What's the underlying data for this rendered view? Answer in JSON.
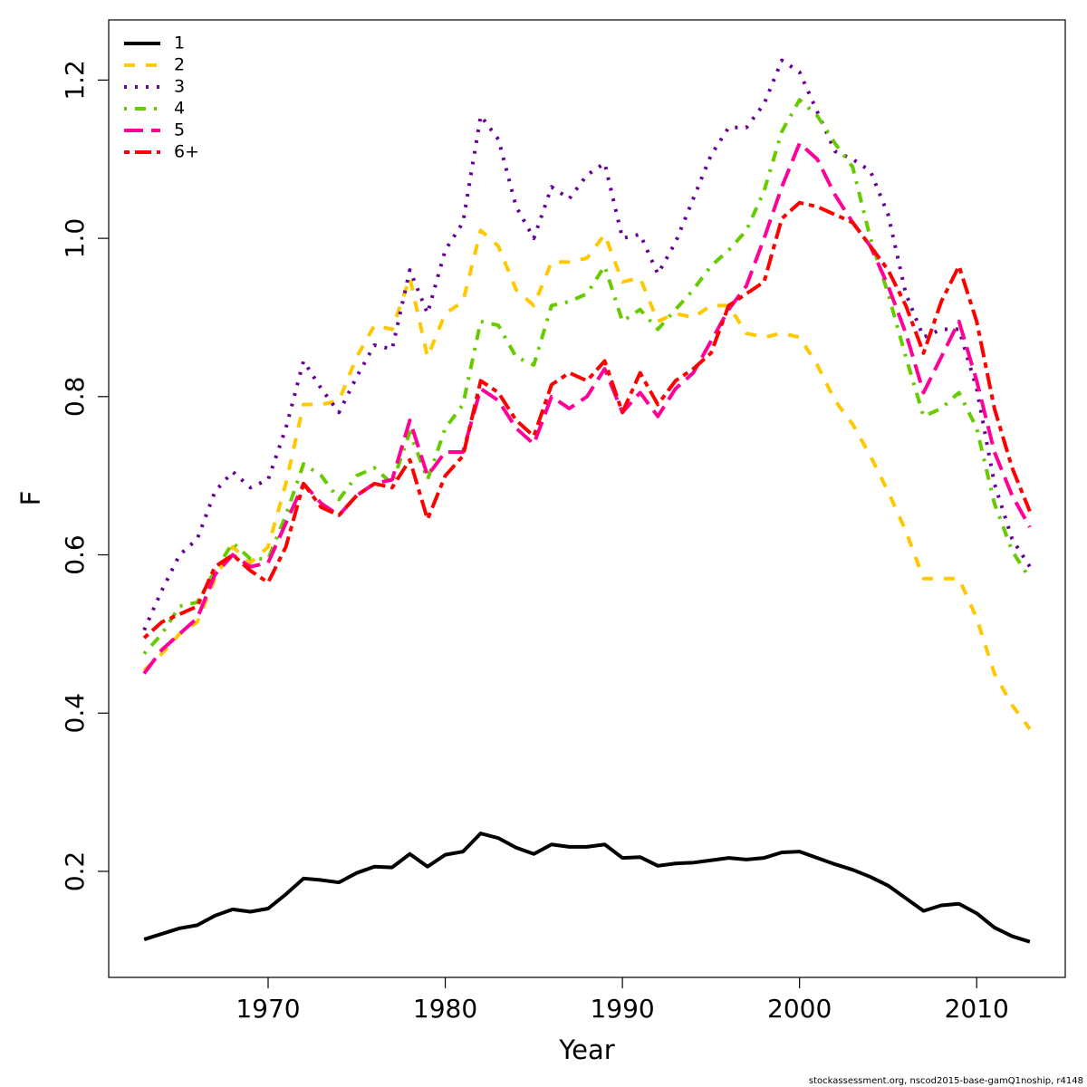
{
  "chart_data": {
    "type": "line",
    "xlabel": "Year",
    "ylabel": "F",
    "caption": "stockassessment.org, nscod2015-base-gamQ1noship, r4148",
    "legend_position": "topleft",
    "xlim": [
      1961,
      2015
    ],
    "ylim": [
      0.066,
      1.276
    ],
    "xticks": [
      1970,
      1980,
      1990,
      2000,
      2010
    ],
    "yticks": [
      0.2,
      0.4,
      0.6,
      0.8,
      {
        "value": 1,
        "label": "1.0"
      },
      1.2
    ],
    "x": [
      1963,
      1964,
      1965,
      1966,
      1967,
      1968,
      1969,
      1970,
      1971,
      1972,
      1973,
      1974,
      1975,
      1976,
      1977,
      1978,
      1979,
      1980,
      1981,
      1982,
      1983,
      1984,
      1985,
      1986,
      1987,
      1988,
      1989,
      1990,
      1991,
      1992,
      1993,
      1994,
      1995,
      1996,
      1997,
      1998,
      1999,
      2000,
      2001,
      2002,
      2003,
      2004,
      2005,
      2006,
      2007,
      2008,
      2009,
      2010,
      2011,
      2012,
      2013
    ],
    "series": [
      {
        "name": "1",
        "color": "#000000",
        "linestyle": "solid",
        "values": [
          0.114,
          0.121,
          0.128,
          0.132,
          0.144,
          0.152,
          0.149,
          0.153,
          0.171,
          0.191,
          0.189,
          0.186,
          0.198,
          0.206,
          0.205,
          0.222,
          0.206,
          0.221,
          0.225,
          0.248,
          0.242,
          0.23,
          0.222,
          0.234,
          0.231,
          0.231,
          0.234,
          0.217,
          0.218,
          0.207,
          0.21,
          0.211,
          0.214,
          0.217,
          0.215,
          0.217,
          0.224,
          0.225,
          0.217,
          0.209,
          0.202,
          0.193,
          0.182,
          0.166,
          0.15,
          0.157,
          0.159,
          0.147,
          0.129,
          0.118,
          0.111
        ]
      },
      {
        "name": "2",
        "color": "#ffc800",
        "linestyle": "dashed",
        "values": [
          0.454,
          0.475,
          0.5,
          0.515,
          0.57,
          0.61,
          0.59,
          0.61,
          0.69,
          0.79,
          0.79,
          0.795,
          0.85,
          0.89,
          0.885,
          0.95,
          0.85,
          0.905,
          0.92,
          1.01,
          0.99,
          0.935,
          0.915,
          0.97,
          0.97,
          0.975,
          1.005,
          0.945,
          0.95,
          0.895,
          0.905,
          0.9,
          0.915,
          0.915,
          0.88,
          0.875,
          0.88,
          0.875,
          0.84,
          0.795,
          0.765,
          0.725,
          0.68,
          0.63,
          0.57,
          0.57,
          0.57,
          0.52,
          0.45,
          0.41,
          0.38
        ]
      },
      {
        "name": "3",
        "color": "#660099",
        "linestyle": "dotted",
        "values": [
          0.505,
          0.555,
          0.6,
          0.62,
          0.68,
          0.705,
          0.685,
          0.695,
          0.76,
          0.845,
          0.81,
          0.78,
          0.825,
          0.865,
          0.86,
          0.96,
          0.905,
          0.985,
          1.02,
          1.155,
          1.125,
          1.04,
          1.0,
          1.065,
          1.05,
          1.08,
          1.095,
          1.0,
          1.005,
          0.955,
          0.995,
          1.05,
          1.105,
          1.14,
          1.14,
          1.17,
          1.225,
          1.21,
          1.16,
          1.11,
          1.1,
          1.085,
          1.03,
          0.93,
          0.875,
          0.885,
          0.885,
          0.81,
          0.69,
          0.62,
          0.585
        ]
      },
      {
        "name": "4",
        "color": "#66cc00",
        "linestyle": "dotdash",
        "values": [
          0.475,
          0.5,
          0.535,
          0.54,
          0.58,
          0.615,
          0.595,
          0.595,
          0.65,
          0.715,
          0.7,
          0.67,
          0.7,
          0.71,
          0.69,
          0.755,
          0.695,
          0.76,
          0.79,
          0.895,
          0.89,
          0.85,
          0.84,
          0.915,
          0.92,
          0.93,
          0.965,
          0.895,
          0.91,
          0.885,
          0.91,
          0.935,
          0.965,
          0.985,
          1.01,
          1.06,
          1.135,
          1.175,
          1.155,
          1.12,
          1.09,
          1.0,
          0.93,
          0.85,
          0.775,
          0.785,
          0.805,
          0.76,
          0.665,
          0.605,
          0.57
        ]
      },
      {
        "name": "5",
        "color": "#ff0099",
        "linestyle": "longdash",
        "values": [
          0.45,
          0.48,
          0.5,
          0.52,
          0.575,
          0.6,
          0.585,
          0.59,
          0.64,
          0.69,
          0.665,
          0.65,
          0.675,
          0.69,
          0.695,
          0.77,
          0.7,
          0.73,
          0.73,
          0.81,
          0.795,
          0.76,
          0.74,
          0.8,
          0.785,
          0.8,
          0.835,
          0.78,
          0.805,
          0.775,
          0.81,
          0.83,
          0.87,
          0.91,
          0.94,
          1.0,
          1.065,
          1.12,
          1.1,
          1.055,
          1.02,
          0.99,
          0.94,
          0.88,
          0.805,
          0.85,
          0.895,
          0.82,
          0.73,
          0.675,
          0.635
        ]
      },
      {
        "name": "6+",
        "color": "#ff0000",
        "linestyle": "twodash",
        "values": [
          0.495,
          0.515,
          0.525,
          0.535,
          0.585,
          0.6,
          0.58,
          0.565,
          0.61,
          0.69,
          0.66,
          0.65,
          0.675,
          0.69,
          0.685,
          0.72,
          0.645,
          0.7,
          0.725,
          0.82,
          0.805,
          0.77,
          0.75,
          0.815,
          0.83,
          0.82,
          0.845,
          0.78,
          0.83,
          0.79,
          0.82,
          0.835,
          0.855,
          0.915,
          0.93,
          0.945,
          1.025,
          1.045,
          1.04,
          1.03,
          1.02,
          0.99,
          0.96,
          0.915,
          0.855,
          0.92,
          0.965,
          0.895,
          0.785,
          0.71,
          0.655
        ]
      }
    ]
  }
}
